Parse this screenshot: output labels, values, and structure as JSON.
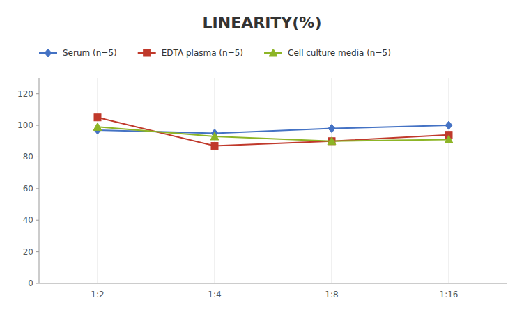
{
  "chart_data": {
    "type": "line",
    "title": "LINEARITY(%)",
    "categories": [
      "1:2",
      "1:4",
      "1:8",
      "1:16"
    ],
    "series": [
      {
        "name": "Serum (n=5)",
        "color": "#4472C4",
        "marker": "diamond",
        "values": [
          97,
          95,
          98,
          100
        ]
      },
      {
        "name": "EDTA plasma (n=5)",
        "color": "#C0392B",
        "marker": "square",
        "values": [
          105,
          87,
          90,
          94
        ]
      },
      {
        "name": "Cell culture media (n=5)",
        "color": "#8DB526",
        "marker": "triangle",
        "values": [
          99,
          93,
          90,
          91
        ]
      }
    ],
    "ylim": [
      0,
      130
    ],
    "yticks": [
      0,
      20,
      40,
      60,
      80,
      100,
      120
    ],
    "grid": true,
    "legend": "top"
  }
}
